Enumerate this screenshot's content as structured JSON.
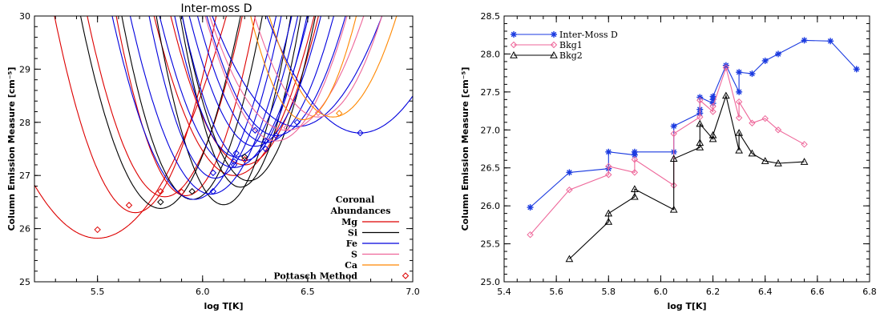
{
  "chart_data": [
    {
      "type": "line",
      "title": "Inter-moss D",
      "xlabel": "log T[K]",
      "ylabel": "Column Emission Measure [cm⁻⁵]",
      "xlim": [
        5.2,
        7.0
      ],
      "ylim": [
        25,
        30
      ],
      "xticks": [
        5.5,
        6.0,
        6.5,
        7.0
      ],
      "xtick_labels": [
        "5.5",
        "6.0",
        "6.5",
        "7.0"
      ],
      "yticks": [
        25,
        26,
        27,
        28,
        29,
        30
      ],
      "ytick_labels": [
        "25",
        "26",
        "27",
        "28",
        "29",
        "30"
      ],
      "legend": {
        "title_lines": [
          "Coronal",
          "Abundances"
        ],
        "entries": [
          {
            "label": "Mg",
            "color": "#dd0000",
            "kind": "line"
          },
          {
            "label": "Si",
            "color": "#000000",
            "kind": "line"
          },
          {
            "label": "Fe",
            "color": "#0000dd",
            "kind": "line"
          },
          {
            "label": "S",
            "color": "#ee6699",
            "kind": "line"
          },
          {
            "label": "Ca",
            "color": "#ff8800",
            "kind": "line"
          },
          {
            "label": "Pottasch Method",
            "color": "#dd0000",
            "kind": "diamond"
          }
        ],
        "placement": "bottom-right"
      },
      "curves": [
        {
          "element": "Mg",
          "color": "#dd0000",
          "min_x": 5.5,
          "min_y": 25.82,
          "width": 0.3
        },
        {
          "element": "Mg",
          "color": "#dd0000",
          "min_x": 5.68,
          "min_y": 26.3,
          "width": 0.2
        },
        {
          "element": "Mg",
          "color": "#dd0000",
          "min_x": 5.82,
          "min_y": 26.6,
          "width": 0.2
        },
        {
          "element": "Mg",
          "color": "#dd0000",
          "min_x": 5.92,
          "min_y": 26.62,
          "width": 0.18
        },
        {
          "element": "Mg",
          "color": "#dd0000",
          "min_x": 6.15,
          "min_y": 27.0,
          "width": 0.22
        },
        {
          "element": "Mg",
          "color": "#dd0000",
          "min_x": 6.2,
          "min_y": 27.2,
          "width": 0.21
        },
        {
          "element": "Si",
          "color": "#000000",
          "min_x": 5.8,
          "min_y": 26.38,
          "width": 0.2
        },
        {
          "element": "Si",
          "color": "#000000",
          "min_x": 5.95,
          "min_y": 26.55,
          "width": 0.18
        },
        {
          "element": "Si",
          "color": "#000000",
          "min_x": 6.1,
          "min_y": 26.45,
          "width": 0.17
        },
        {
          "element": "Si",
          "color": "#000000",
          "min_x": 6.18,
          "min_y": 26.78,
          "width": 0.16
        },
        {
          "element": "Si",
          "color": "#000000",
          "min_x": 6.22,
          "min_y": 26.9,
          "width": 0.18
        },
        {
          "element": "Fe",
          "color": "#0000dd",
          "min_x": 5.96,
          "min_y": 26.55,
          "width": 0.21
        },
        {
          "element": "Fe",
          "color": "#0000dd",
          "min_x": 6.04,
          "min_y": 26.65,
          "width": 0.21
        },
        {
          "element": "Fe",
          "color": "#0000dd",
          "min_x": 6.06,
          "min_y": 26.95,
          "width": 0.18
        },
        {
          "element": "Fe",
          "color": "#0000dd",
          "min_x": 6.15,
          "min_y": 27.15,
          "width": 0.21
        },
        {
          "element": "Fe",
          "color": "#0000dd",
          "min_x": 6.16,
          "min_y": 27.35,
          "width": 0.18
        },
        {
          "element": "Fe",
          "color": "#0000dd",
          "min_x": 6.2,
          "min_y": 27.28,
          "width": 0.18
        },
        {
          "element": "Fe",
          "color": "#0000dd",
          "min_x": 6.25,
          "min_y": 27.55,
          "width": 0.2
        },
        {
          "element": "Fe",
          "color": "#0000dd",
          "min_x": 6.3,
          "min_y": 27.62,
          "width": 0.21
        },
        {
          "element": "Fe",
          "color": "#0000dd",
          "min_x": 6.35,
          "min_y": 27.75,
          "width": 0.22
        },
        {
          "element": "Fe",
          "color": "#0000dd",
          "min_x": 6.45,
          "min_y": 27.92,
          "width": 0.28
        },
        {
          "element": "Fe",
          "color": "#0000dd",
          "min_x": 6.75,
          "min_y": 27.8,
          "width": 0.3
        },
        {
          "element": "S",
          "color": "#ee6699",
          "min_x": 6.35,
          "min_y": 27.65,
          "width": 0.22
        },
        {
          "element": "S",
          "color": "#ee6699",
          "min_x": 6.4,
          "min_y": 27.85,
          "width": 0.25
        },
        {
          "element": "S",
          "color": "#ee6699",
          "min_x": 6.55,
          "min_y": 28.1,
          "width": 0.22
        },
        {
          "element": "Ca",
          "color": "#ff8800",
          "min_x": 6.48,
          "min_y": 28.05,
          "width": 0.18
        },
        {
          "element": "Ca",
          "color": "#ff8800",
          "min_x": 6.62,
          "min_y": 28.1,
          "width": 0.22
        }
      ],
      "pottasch_points": [
        {
          "x": 5.5,
          "y": 25.98,
          "color": "#dd0000"
        },
        {
          "x": 5.65,
          "y": 26.44,
          "color": "#dd0000"
        },
        {
          "x": 5.8,
          "y": 26.7,
          "color": "#dd0000"
        },
        {
          "x": 5.8,
          "y": 26.5,
          "color": "#000000"
        },
        {
          "x": 5.9,
          "y": 26.69,
          "color": "#dd0000"
        },
        {
          "x": 5.95,
          "y": 26.7,
          "color": "#000000"
        },
        {
          "x": 6.05,
          "y": 26.7,
          "color": "#0000dd"
        },
        {
          "x": 6.05,
          "y": 27.05,
          "color": "#0000dd"
        },
        {
          "x": 6.15,
          "y": 27.2,
          "color": "#0000dd"
        },
        {
          "x": 6.15,
          "y": 27.26,
          "color": "#0000dd"
        },
        {
          "x": 6.16,
          "y": 27.42,
          "color": "#0000dd"
        },
        {
          "x": 6.2,
          "y": 27.3,
          "color": "#dd0000"
        },
        {
          "x": 6.2,
          "y": 27.35,
          "color": "#000000"
        },
        {
          "x": 6.25,
          "y": 27.85,
          "color": "#0000dd"
        },
        {
          "x": 6.3,
          "y": 27.5,
          "color": "#0000dd"
        },
        {
          "x": 6.3,
          "y": 27.65,
          "color": "#0000dd"
        },
        {
          "x": 6.35,
          "y": 27.75,
          "color": "#0000dd"
        },
        {
          "x": 6.4,
          "y": 27.9,
          "color": "#ee6699"
        },
        {
          "x": 6.45,
          "y": 28.0,
          "color": "#0000dd"
        },
        {
          "x": 6.55,
          "y": 28.18,
          "color": "#ee6699"
        },
        {
          "x": 6.65,
          "y": 28.17,
          "color": "#ff8800"
        },
        {
          "x": 6.75,
          "y": 27.8,
          "color": "#0000dd"
        }
      ]
    },
    {
      "type": "line",
      "title": "",
      "xlabel": "log T[K]",
      "ylabel": "Column Emission Measure [cm⁻⁵]",
      "xlim": [
        5.4,
        6.8
      ],
      "ylim": [
        25.0,
        28.5
      ],
      "xticks": [
        5.4,
        5.6,
        5.8,
        6.0,
        6.2,
        6.4,
        6.6,
        6.8
      ],
      "xtick_labels": [
        "5.4",
        "5.6",
        "5.8",
        "6.0",
        "6.2",
        "6.4",
        "6.6",
        "6.8"
      ],
      "yticks": [
        25.0,
        25.5,
        26.0,
        26.5,
        27.0,
        27.5,
        28.0,
        28.5
      ],
      "ytick_labels": [
        "25.0",
        "25.5",
        "26.0",
        "26.5",
        "27.0",
        "27.5",
        "28.0",
        "28.5"
      ],
      "legend_placement": "top-left",
      "series": [
        {
          "name": "Inter-Moss D",
          "color": "#1a3ae0",
          "marker": "asterisk",
          "x": [
            5.5,
            5.65,
            5.8,
            5.8,
            5.9,
            5.9,
            6.05,
            6.05,
            6.15,
            6.15,
            6.15,
            6.2,
            6.2,
            6.2,
            6.25,
            6.3,
            6.3,
            6.35,
            6.4,
            6.45,
            6.55,
            6.65,
            6.75
          ],
          "y": [
            25.98,
            26.44,
            26.49,
            26.71,
            26.67,
            26.71,
            26.71,
            27.05,
            27.22,
            27.27,
            27.43,
            27.35,
            27.4,
            27.44,
            27.85,
            27.5,
            27.76,
            27.74,
            27.91,
            28.0,
            28.18,
            28.17,
            27.8
          ]
        },
        {
          "name": "Bkg1",
          "color": "#ee6699",
          "marker": "diamond",
          "x": [
            5.5,
            5.65,
            5.8,
            5.8,
            5.9,
            5.9,
            6.05,
            6.05,
            6.15,
            6.15,
            6.2,
            6.2,
            6.25,
            6.3,
            6.3,
            6.35,
            6.4,
            6.45,
            6.55
          ],
          "y": [
            25.62,
            26.21,
            26.41,
            26.52,
            26.44,
            26.61,
            26.27,
            26.95,
            27.17,
            27.39,
            27.24,
            27.31,
            27.82,
            27.16,
            27.37,
            27.09,
            27.15,
            27.0,
            26.81
          ]
        },
        {
          "name": "Bkg2",
          "color": "#000000",
          "marker": "triangle",
          "x": [
            5.65,
            5.8,
            5.8,
            5.9,
            5.9,
            6.05,
            6.05,
            6.15,
            6.15,
            6.15,
            6.2,
            6.2,
            6.25,
            6.3,
            6.3,
            6.35,
            6.4,
            6.45,
            6.55
          ],
          "y": [
            25.3,
            25.79,
            25.9,
            26.12,
            26.22,
            25.95,
            26.62,
            26.77,
            26.83,
            27.08,
            26.88,
            26.93,
            27.45,
            26.73,
            26.96,
            26.69,
            26.59,
            26.56,
            26.58
          ]
        }
      ]
    }
  ]
}
